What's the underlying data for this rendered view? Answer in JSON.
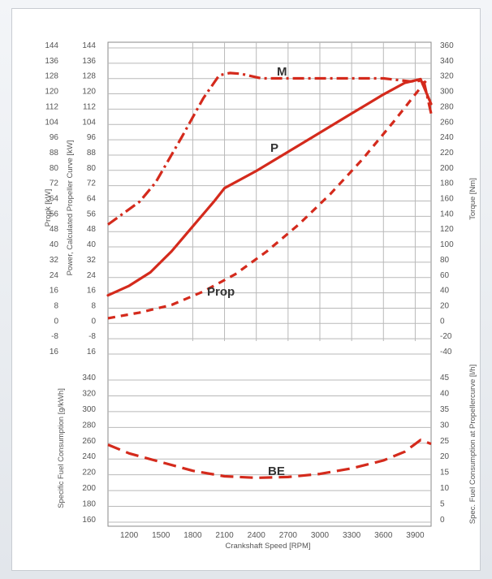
{
  "chart_data": {
    "type": "line",
    "x": [
      1200,
      1500,
      1800,
      2100,
      2400,
      2700,
      3000,
      3300,
      3600,
      3900
    ],
    "xlabel": "Crankshaft Speed [RPM]",
    "xlim": [
      1000,
      4050
    ],
    "left_outer_ticks": [
      "144",
      "136",
      "128",
      "120",
      "112",
      "104",
      "96",
      "88",
      "80",
      "72",
      "64",
      "56",
      "48",
      "40",
      "32",
      "24",
      "16",
      "8",
      "0",
      "-8",
      "16"
    ],
    "left_outer_label": "Propk [kW]",
    "left_inner_ticks": [
      "144",
      "136",
      "128",
      "120",
      "112",
      "104",
      "96",
      "88",
      "80",
      "72",
      "64",
      "56",
      "48",
      "40",
      "32",
      "24",
      "16",
      "8",
      "0",
      "-8",
      "16"
    ],
    "left_inner_label": "Power, Calculated Propeller Curve [kW]",
    "right_top_ticks": [
      "360",
      "340",
      "320",
      "300",
      "280",
      "260",
      "240",
      "220",
      "200",
      "180",
      "160",
      "140",
      "120",
      "100",
      "80",
      "60",
      "40",
      "20",
      "0",
      "-20",
      "-40"
    ],
    "right_top_label": "Torque [Nm]",
    "bottom_left_ticks": [
      "340",
      "320",
      "300",
      "280",
      "260",
      "240",
      "220",
      "200",
      "180",
      "160"
    ],
    "bottom_left_label": "Specific Fuel Consumption [g/kWh]",
    "bottom_right_ticks": [
      "45",
      "40",
      "35",
      "30",
      "25",
      "20",
      "15",
      "10",
      "5",
      "0"
    ],
    "bottom_right_label": "Spec. Fuel Consumption at Propellercurve [l/h]",
    "grid": true,
    "colors": {
      "series": "#d42a1c",
      "grid": "#b9b9b9"
    },
    "series": [
      {
        "name": "M",
        "axis": "torque",
        "style": "dash-dot",
        "points": [
          [
            1000,
            125
          ],
          [
            1300,
            155
          ],
          [
            1450,
            180
          ],
          [
            1700,
            240
          ],
          [
            1900,
            290
          ],
          [
            2050,
            320
          ],
          [
            2150,
            323
          ],
          [
            2250,
            322
          ],
          [
            2450,
            316
          ],
          [
            2700,
            316
          ],
          [
            3000,
            316
          ],
          [
            3300,
            316
          ],
          [
            3600,
            316
          ],
          [
            3850,
            312
          ],
          [
            3980,
            313
          ],
          [
            4050,
            270
          ]
        ]
      },
      {
        "name": "P",
        "axis": "power",
        "style": "solid",
        "points": [
          [
            1000,
            13
          ],
          [
            1200,
            18
          ],
          [
            1400,
            25
          ],
          [
            1600,
            36
          ],
          [
            1800,
            49
          ],
          [
            2000,
            62
          ],
          [
            2100,
            69
          ],
          [
            2400,
            78
          ],
          [
            2700,
            88
          ],
          [
            3000,
            98
          ],
          [
            3300,
            108
          ],
          [
            3600,
            118
          ],
          [
            3800,
            124
          ],
          [
            3950,
            126
          ],
          [
            4050,
            113
          ]
        ]
      },
      {
        "name": "Prop",
        "axis": "power",
        "style": "dashed",
        "points": [
          [
            1000,
            1
          ],
          [
            1300,
            4
          ],
          [
            1600,
            8
          ],
          [
            1900,
            15
          ],
          [
            2200,
            24
          ],
          [
            2500,
            36
          ],
          [
            2800,
            50
          ],
          [
            3100,
            66
          ],
          [
            3400,
            84
          ],
          [
            3700,
            104
          ],
          [
            3900,
            118
          ],
          [
            4000,
            125
          ]
        ]
      },
      {
        "name": "BE",
        "axis": "sfc",
        "style": "long-dash",
        "points": [
          [
            1000,
            254
          ],
          [
            1200,
            243
          ],
          [
            1500,
            232
          ],
          [
            1800,
            221
          ],
          [
            2100,
            214
          ],
          [
            2400,
            212
          ],
          [
            2700,
            213
          ],
          [
            3000,
            217
          ],
          [
            3300,
            224
          ],
          [
            3600,
            234
          ],
          [
            3800,
            245
          ],
          [
            3950,
            260
          ],
          [
            4050,
            255
          ]
        ]
      }
    ],
    "annotations": [
      "M",
      "P",
      "Prop",
      "BE"
    ]
  }
}
